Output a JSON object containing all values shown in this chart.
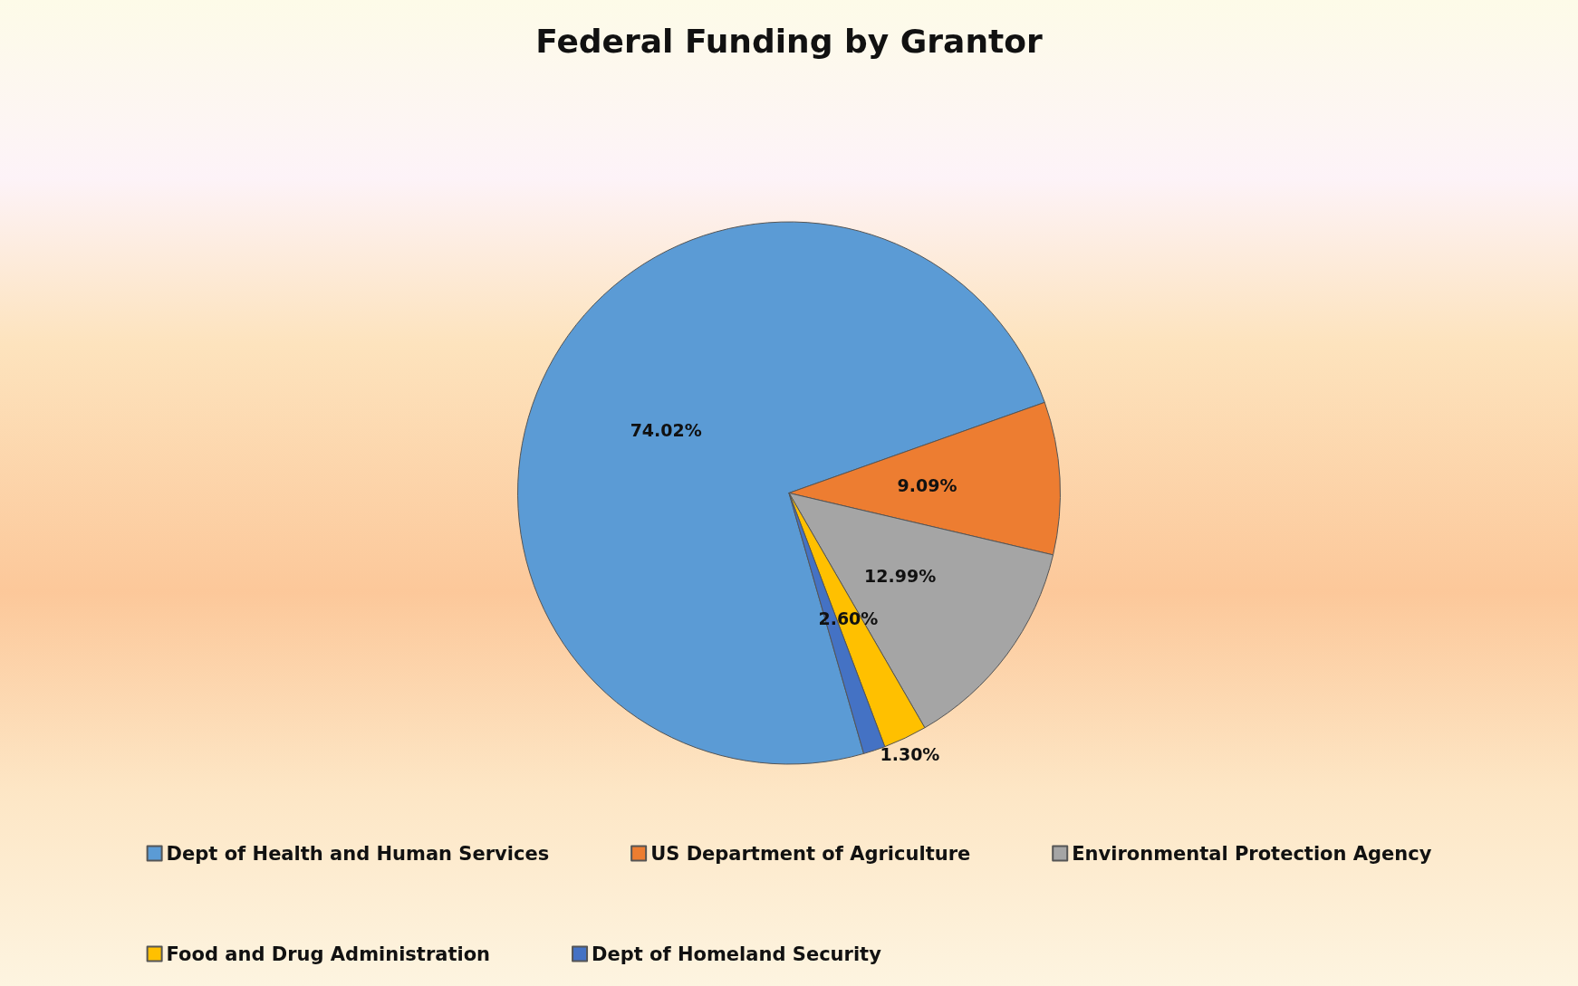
{
  "chart_data": {
    "type": "pie",
    "title": "Federal Funding by Grantor",
    "categories": [
      "Dept of Health and Human Services",
      "US Department of Agriculture",
      "Environmental Protection Agency",
      "Food and Drug Administration",
      "Dept of Homeland Security"
    ],
    "values": [
      74.02,
      9.09,
      12.99,
      2.6,
      1.3
    ],
    "value_labels": [
      "74.02%",
      "9.09%",
      "12.99%",
      "2.60%",
      "1.30%"
    ],
    "colors": [
      "#5b9bd5",
      "#ed7d31",
      "#a5a5a5",
      "#ffc000",
      "#4472c4"
    ],
    "legend": "bottom"
  }
}
